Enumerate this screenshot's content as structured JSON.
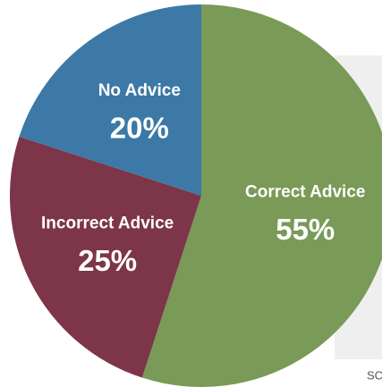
{
  "chart_data": {
    "type": "pie",
    "categories": [
      "Correct  Advice",
      "Incorrect Advice",
      "No Advice"
    ],
    "values": [
      55,
      25,
      20
    ],
    "value_labels": [
      "55%",
      "25%",
      "20%"
    ],
    "colors": [
      "#7a9a57",
      "#7d3549",
      "#3c79a6"
    ],
    "source_text": "SC"
  }
}
